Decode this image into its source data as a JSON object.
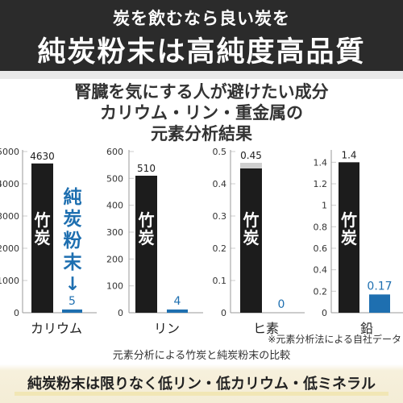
{
  "header": {
    "line1": "炭を飲むなら良い炭を",
    "line2": "純炭粉末は高純度高品質"
  },
  "subtitle": {
    "line1": "腎臓を気にする人が避けたい成分",
    "line2": "カリウム・リン・重金属の",
    "line3": "元素分析結果"
  },
  "legend_labels": {
    "bamboo": "竹炭",
    "junsumi": "純炭粉末",
    "arrow": "↓"
  },
  "notes": {
    "source": "※元素分析法による自社データ",
    "caption": "元素分析による竹炭と純炭粉末の比較"
  },
  "footer": {
    "tagline": "純炭粉末は限りなく低リン・低カリウム・低ミネラル"
  },
  "colors": {
    "bamboo": "#1c1c1c",
    "junsumi": "#1e6fb0",
    "axis": "#999999",
    "grid": "#cccccc"
  },
  "chart_data": [
    {
      "type": "bar",
      "xlabel": "カリウム",
      "categories": [
        "竹炭",
        "純炭粉末"
      ],
      "values": [
        4630,
        5
      ],
      "value_labels": [
        "4630",
        "5"
      ],
      "ylim": [
        0,
        5000
      ],
      "yticks": [
        "0",
        "1000",
        "2000",
        "3000",
        "4000",
        "5000"
      ]
    },
    {
      "type": "bar",
      "xlabel": "リン",
      "categories": [
        "竹炭",
        "純炭粉末"
      ],
      "values": [
        510,
        4
      ],
      "value_labels": [
        "510",
        "4"
      ],
      "ylim": [
        0,
        600
      ],
      "yticks": [
        "0",
        "100",
        "200",
        "300",
        "400",
        "500",
        "600"
      ]
    },
    {
      "type": "bar",
      "xlabel": "ヒ素",
      "categories": [
        "竹炭",
        "純炭粉末"
      ],
      "values": [
        0.45,
        0
      ],
      "value_labels": [
        "0.45",
        "0"
      ],
      "ylim": [
        0,
        0.5
      ],
      "yticks": [
        "0",
        "0.1",
        "0.2",
        "0.3",
        "0.4",
        "0.5"
      ]
    },
    {
      "type": "bar",
      "xlabel": "鉛",
      "categories": [
        "竹炭",
        "純炭粉末"
      ],
      "values": [
        1.4,
        0.17
      ],
      "value_labels": [
        "1.4",
        "0.17"
      ],
      "ylim": [
        0,
        1.5
      ],
      "yticks": [
        "0",
        "0.2",
        "0.4",
        "0.6",
        "0.8",
        "1",
        "1.2",
        "1.4"
      ]
    }
  ]
}
